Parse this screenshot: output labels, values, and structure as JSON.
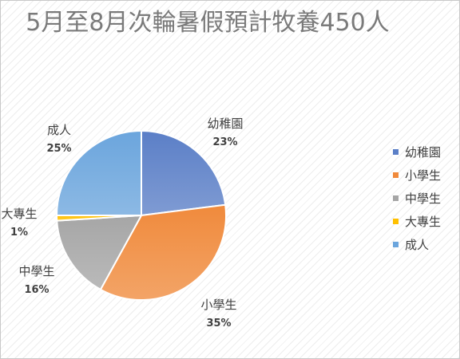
{
  "chart_data": {
    "type": "pie",
    "title": "5月至8月次輪暑假預計牧養450人",
    "categories": [
      "幼稚園",
      "小學生",
      "中學生",
      "大專生",
      "成人"
    ],
    "values": [
      23,
      35,
      16,
      1,
      25
    ],
    "value_labels": [
      "23%",
      "35%",
      "16%",
      "1%",
      "25%"
    ],
    "colors": [
      "#5B7FC7",
      "#F08A3C",
      "#A6A6A6",
      "#FFC000",
      "#6BA5DD"
    ],
    "legend_position": "right"
  }
}
